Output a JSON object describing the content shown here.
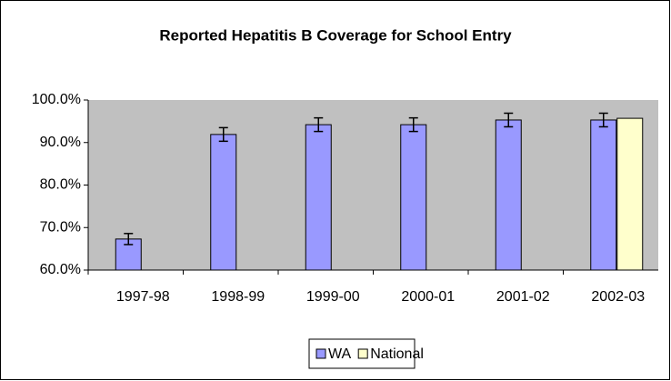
{
  "chart_data": {
    "type": "bar",
    "title": "Reported Hepatitis B Coverage for School Entry",
    "categories": [
      "1997-98",
      "1998-99",
      "1999-00",
      "2000-01",
      "2001-02",
      "2002-03"
    ],
    "series": [
      {
        "name": "WA",
        "color": "#9999ff",
        "values": [
          67.3,
          91.9,
          94.2,
          94.2,
          95.3,
          95.3
        ],
        "errors": [
          1.3,
          1.6,
          1.6,
          1.6,
          1.6,
          1.6
        ]
      },
      {
        "name": "National",
        "color": "#ffffcc",
        "values": [
          null,
          null,
          null,
          null,
          null,
          95.7
        ]
      }
    ],
    "ylim": [
      60,
      100
    ],
    "yticks": [
      {
        "value": 60,
        "label": "60.0%"
      },
      {
        "value": 70,
        "label": "70.0%"
      },
      {
        "value": 80,
        "label": "80.0%"
      },
      {
        "value": 90,
        "label": "90.0%"
      },
      {
        "value": 100,
        "label": "100.0%"
      }
    ],
    "plot_background": "#c0c0c0",
    "legend": "bottom"
  }
}
